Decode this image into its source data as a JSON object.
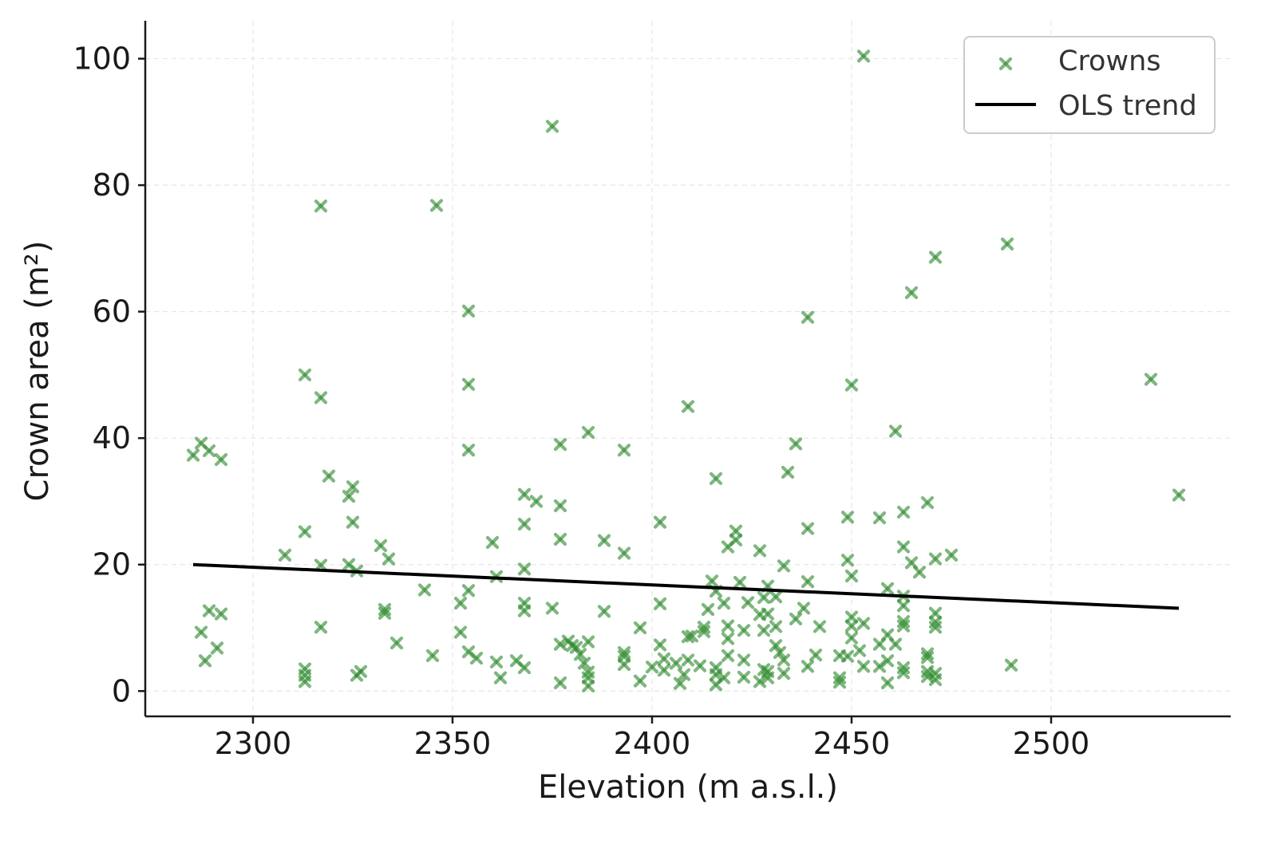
{
  "chart_data": {
    "type": "scatter",
    "xlabel": "Elevation (m a.s.l.)",
    "ylabel": "Crown area (m²)",
    "xlim": [
      2273,
      2545
    ],
    "ylim": [
      -4,
      106
    ],
    "x_ticks": [
      2300,
      2350,
      2400,
      2450,
      2500
    ],
    "y_ticks": [
      0,
      20,
      40,
      60,
      80,
      100
    ],
    "grid": true,
    "legend_position": "top-right",
    "colors": {
      "points": "#2e8b2e",
      "trend": "#000000",
      "axis": "#1a1a1a"
    },
    "series": [
      {
        "name": "Crowns",
        "kind": "scatter",
        "marker": "x",
        "points": [
          [
            2285,
            37.3
          ],
          [
            2287,
            39.2
          ],
          [
            2289,
            38.0
          ],
          [
            2292,
            36.6
          ],
          [
            2287,
            9.3
          ],
          [
            2289,
            12.7
          ],
          [
            2288,
            4.8
          ],
          [
            2291,
            6.8
          ],
          [
            2292,
            12.2
          ],
          [
            2308,
            21.5
          ],
          [
            2313,
            50.0
          ],
          [
            2313,
            25.2
          ],
          [
            2313,
            3.5
          ],
          [
            2313,
            2.5
          ],
          [
            2313,
            1.5
          ],
          [
            2317,
            76.7
          ],
          [
            2317,
            46.4
          ],
          [
            2317,
            19.9
          ],
          [
            2317,
            10.1
          ],
          [
            2319,
            34.0
          ],
          [
            2324,
            30.8
          ],
          [
            2325,
            32.3
          ],
          [
            2325,
            26.7
          ],
          [
            2324,
            20.0
          ],
          [
            2326,
            19.0
          ],
          [
            2326,
            2.5
          ],
          [
            2327,
            3.1
          ],
          [
            2332,
            23.0
          ],
          [
            2334,
            20.9
          ],
          [
            2333,
            12.9
          ],
          [
            2333,
            12.3
          ],
          [
            2336,
            7.6
          ],
          [
            2343,
            16.0
          ],
          [
            2345,
            5.6
          ],
          [
            2346,
            76.8
          ],
          [
            2352,
            13.9
          ],
          [
            2352,
            9.3
          ],
          [
            2354,
            60.1
          ],
          [
            2354,
            48.5
          ],
          [
            2354,
            38.1
          ],
          [
            2354,
            15.9
          ],
          [
            2354,
            6.2
          ],
          [
            2356,
            5.2
          ],
          [
            2360,
            23.5
          ],
          [
            2361,
            18.1
          ],
          [
            2361,
            4.6
          ],
          [
            2362,
            2.1
          ],
          [
            2366,
            4.8
          ],
          [
            2368,
            31.1
          ],
          [
            2368,
            26.4
          ],
          [
            2368,
            19.3
          ],
          [
            2368,
            13.9
          ],
          [
            2368,
            12.7
          ],
          [
            2368,
            3.7
          ],
          [
            2371,
            30.0
          ],
          [
            2375,
            89.3
          ],
          [
            2375,
            13.1
          ],
          [
            2377,
            39.0
          ],
          [
            2377,
            29.3
          ],
          [
            2377,
            24.0
          ],
          [
            2377,
            7.4
          ],
          [
            2377,
            1.3
          ],
          [
            2379,
            7.9
          ],
          [
            2380,
            7.2
          ],
          [
            2381,
            6.9
          ],
          [
            2382,
            5.8
          ],
          [
            2383,
            4.4
          ],
          [
            2384,
            3.0
          ],
          [
            2384,
            2.1
          ],
          [
            2384,
            0.8
          ],
          [
            2384,
            40.9
          ],
          [
            2384,
            7.8
          ],
          [
            2388,
            23.8
          ],
          [
            2388,
            12.6
          ],
          [
            2393,
            38.1
          ],
          [
            2393,
            21.8
          ],
          [
            2393,
            6.1
          ],
          [
            2393,
            5.5
          ],
          [
            2393,
            4.2
          ],
          [
            2397,
            10.0
          ],
          [
            2397,
            1.6
          ],
          [
            2400,
            3.8
          ],
          [
            2402,
            26.7
          ],
          [
            2402,
            13.8
          ],
          [
            2402,
            7.3
          ],
          [
            2403,
            5.1
          ],
          [
            2403,
            3.3
          ],
          [
            2406,
            4.4
          ],
          [
            2407,
            1.2
          ],
          [
            2408,
            2.6
          ],
          [
            2409,
            45.0
          ],
          [
            2409,
            8.6
          ],
          [
            2409,
            4.9
          ],
          [
            2410,
            8.7
          ],
          [
            2412,
            4.0
          ],
          [
            2413,
            10.1
          ],
          [
            2413,
            9.4
          ],
          [
            2414,
            12.9
          ],
          [
            2415,
            17.4
          ],
          [
            2416,
            33.6
          ],
          [
            2416,
            15.8
          ],
          [
            2416,
            3.7
          ],
          [
            2416,
            2.6
          ],
          [
            2416,
            1.0
          ],
          [
            2418,
            13.9
          ],
          [
            2418,
            2.1
          ],
          [
            2419,
            22.8
          ],
          [
            2419,
            10.3
          ],
          [
            2419,
            8.3
          ],
          [
            2419,
            5.6
          ],
          [
            2421,
            25.3
          ],
          [
            2421,
            23.9
          ],
          [
            2422,
            17.2
          ],
          [
            2423,
            9.6
          ],
          [
            2423,
            4.9
          ],
          [
            2423,
            2.2
          ],
          [
            2424,
            14.0
          ],
          [
            2427,
            22.2
          ],
          [
            2427,
            12.1
          ],
          [
            2427,
            1.5
          ],
          [
            2428,
            14.8
          ],
          [
            2428,
            9.6
          ],
          [
            2428,
            3.4
          ],
          [
            2429,
            16.6
          ],
          [
            2429,
            12.2
          ],
          [
            2429,
            3.1
          ],
          [
            2429,
            2.1
          ],
          [
            2431,
            14.9
          ],
          [
            2431,
            10.2
          ],
          [
            2431,
            7.2
          ],
          [
            2432,
            6.1
          ],
          [
            2433,
            19.8
          ],
          [
            2433,
            4.9
          ],
          [
            2433,
            2.8
          ],
          [
            2434,
            34.6
          ],
          [
            2436,
            39.1
          ],
          [
            2436,
            11.4
          ],
          [
            2438,
            13.1
          ],
          [
            2439,
            59.1
          ],
          [
            2439,
            25.7
          ],
          [
            2439,
            17.3
          ],
          [
            2439,
            3.9
          ],
          [
            2441,
            5.7
          ],
          [
            2442,
            10.2
          ],
          [
            2447,
            5.6
          ],
          [
            2447,
            2.1
          ],
          [
            2447,
            1.4
          ],
          [
            2449,
            27.5
          ],
          [
            2449,
            20.7
          ],
          [
            2449,
            5.5
          ],
          [
            2450,
            48.4
          ],
          [
            2450,
            18.2
          ],
          [
            2450,
            11.7
          ],
          [
            2450,
            10.3
          ],
          [
            2450,
            8.4
          ],
          [
            2452,
            6.4
          ],
          [
            2453,
            100.4
          ],
          [
            2453,
            10.7
          ],
          [
            2453,
            3.9
          ],
          [
            2457,
            27.4
          ],
          [
            2457,
            7.4
          ],
          [
            2457,
            3.9
          ],
          [
            2459,
            16.2
          ],
          [
            2459,
            8.9
          ],
          [
            2459,
            4.8
          ],
          [
            2459,
            1.3
          ],
          [
            2461,
            41.1
          ],
          [
            2461,
            7.4
          ],
          [
            2463,
            28.3
          ],
          [
            2463,
            22.8
          ],
          [
            2463,
            15.0
          ],
          [
            2463,
            13.5
          ],
          [
            2463,
            11.0
          ],
          [
            2463,
            10.3
          ],
          [
            2463,
            3.7
          ],
          [
            2463,
            2.9
          ],
          [
            2465,
            63.0
          ],
          [
            2465,
            20.3
          ],
          [
            2467,
            18.8
          ],
          [
            2469,
            29.8
          ],
          [
            2469,
            5.9
          ],
          [
            2469,
            5.3
          ],
          [
            2469,
            3.1
          ],
          [
            2469,
            2.3
          ],
          [
            2471,
            68.6
          ],
          [
            2471,
            20.9
          ],
          [
            2471,
            12.3
          ],
          [
            2471,
            10.9
          ],
          [
            2471,
            10.1
          ],
          [
            2471,
            2.8
          ],
          [
            2471,
            1.8
          ],
          [
            2475,
            21.5
          ],
          [
            2489,
            70.7
          ],
          [
            2490,
            4.1
          ],
          [
            2525,
            49.3
          ],
          [
            2532,
            31.0
          ]
        ]
      },
      {
        "name": "OLS trend",
        "kind": "line",
        "points": [
          [
            2285,
            20.0
          ],
          [
            2532,
            13.1
          ]
        ]
      }
    ]
  }
}
